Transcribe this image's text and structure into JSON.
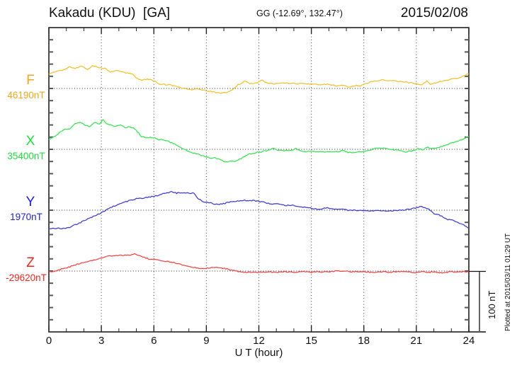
{
  "header": {
    "station_title": "Kakadu (KDU)  [GA]",
    "geo_coords": "GG (-12.69°, 132.47°)",
    "date": "2015/02/08"
  },
  "axes": {
    "x_title": "U T (hour)"
  },
  "scale_bar": {
    "label": "100 nT"
  },
  "footer_note": "Plotted at 2015/03/11 01:29 UT",
  "chart_data": {
    "type": "line",
    "title": "Kakadu (KDU)  [GA]",
    "station": "Kakadu (KDU) [GA]",
    "geographic_coordinates": "GG (-12.69°, 132.47°)",
    "date": "2015/02/08",
    "xlabel": "U T (hour)",
    "x_range": [
      0,
      24
    ],
    "x_major_ticks": [
      0,
      3,
      6,
      9,
      12,
      15,
      18,
      21,
      24
    ],
    "x_minor_tick_step_hours": 1,
    "y_tick_step_nT": 20,
    "row_spacing_nT": 100,
    "noise_nT": 0.9,
    "grid": "dotted vertical lines every 3 h; dotted horizontal line at each channel baseline",
    "legend_position": "left margin channel labels",
    "scale_bar_nT": 100,
    "y_axis_note": "no numeric y ticks; each trace plotted as offset from its baseline value, 100 nT per channel row",
    "series": [
      {
        "name": "F",
        "baseline_label": "46190nT",
        "baseline_nT": 46190,
        "label_color": "#efa61e",
        "line_color": "#f2c02e",
        "points_h_dnT": [
          [
            0,
            24
          ],
          [
            0.4,
            28
          ],
          [
            0.8,
            31
          ],
          [
            1.2,
            35
          ],
          [
            1.5,
            33
          ],
          [
            1.9,
            37
          ],
          [
            2.2,
            31
          ],
          [
            2.5,
            37
          ],
          [
            2.8,
            35
          ],
          [
            3.2,
            33
          ],
          [
            3.5,
            27
          ],
          [
            3.9,
            30
          ],
          [
            4.4,
            26
          ],
          [
            4.8,
            24
          ],
          [
            5.0,
            17
          ],
          [
            5.3,
            14
          ],
          [
            5.7,
            15
          ],
          [
            6.1,
            12
          ],
          [
            6.3,
            7
          ],
          [
            6.9,
            6
          ],
          [
            7.3,
            3
          ],
          [
            7.7,
            0
          ],
          [
            8.1,
            -2
          ],
          [
            8.6,
            -1
          ],
          [
            9.0,
            -4
          ],
          [
            9.5,
            -6
          ],
          [
            9.8,
            -8
          ],
          [
            10.2,
            -6
          ],
          [
            10.5,
            -2
          ],
          [
            10.8,
            6
          ],
          [
            11.2,
            12
          ],
          [
            11.5,
            8
          ],
          [
            11.9,
            9
          ],
          [
            12.2,
            14
          ],
          [
            12.5,
            8
          ],
          [
            13,
            8
          ],
          [
            13.5,
            9
          ],
          [
            14,
            8
          ],
          [
            14.5,
            8
          ],
          [
            15,
            7
          ],
          [
            15.5,
            6
          ],
          [
            16,
            7
          ],
          [
            16.4,
            4
          ],
          [
            16.8,
            6
          ],
          [
            17.2,
            2
          ],
          [
            17.5,
            5
          ],
          [
            17.8,
            4
          ],
          [
            18.2,
            9
          ],
          [
            18.6,
            12
          ],
          [
            19,
            14
          ],
          [
            19.5,
            13
          ],
          [
            20,
            12
          ],
          [
            20.5,
            10
          ],
          [
            21,
            8
          ],
          [
            21.3,
            5
          ],
          [
            21.6,
            12
          ],
          [
            21.8,
            7
          ],
          [
            22.2,
            10
          ],
          [
            22.6,
            13
          ],
          [
            23,
            15
          ],
          [
            23.4,
            17
          ],
          [
            23.7,
            21
          ],
          [
            24,
            24
          ]
        ]
      },
      {
        "name": "X",
        "baseline_label": "35400nT",
        "baseline_nT": 35400,
        "label_color": "#1fd83f",
        "line_color": "#37e153",
        "points_h_dnT": [
          [
            0,
            15
          ],
          [
            0.3,
            21
          ],
          [
            0.6,
            27
          ],
          [
            1.0,
            34
          ],
          [
            1.2,
            33
          ],
          [
            1.5,
            42
          ],
          [
            1.8,
            44
          ],
          [
            2.1,
            40
          ],
          [
            2.3,
            37
          ],
          [
            2.6,
            44
          ],
          [
            2.9,
            42
          ],
          [
            3.1,
            48
          ],
          [
            3.3,
            42
          ],
          [
            3.6,
            40
          ],
          [
            3.8,
            38
          ],
          [
            4.1,
            40
          ],
          [
            4.4,
            36
          ],
          [
            4.7,
            37
          ],
          [
            4.9,
            34
          ],
          [
            5.3,
            21
          ],
          [
            5.6,
            19
          ],
          [
            5.8,
            20
          ],
          [
            6.0,
            19
          ],
          [
            6.2,
            16
          ],
          [
            6.5,
            16
          ],
          [
            6.8,
            13
          ],
          [
            7.1,
            10
          ],
          [
            7.3,
            7
          ],
          [
            7.6,
            1
          ],
          [
            7.9,
            -2
          ],
          [
            8.1,
            -5
          ],
          [
            8.4,
            -7
          ],
          [
            8.7,
            -10
          ],
          [
            9.0,
            -13
          ],
          [
            9.2,
            -14
          ],
          [
            9.5,
            -14
          ],
          [
            9.8,
            -17
          ],
          [
            10.0,
            -20
          ],
          [
            10.3,
            -20
          ],
          [
            10.6,
            -20
          ],
          [
            10.9,
            -16
          ],
          [
            11.1,
            -13
          ],
          [
            11.4,
            -8
          ],
          [
            11.7,
            -7
          ],
          [
            11.9,
            -5
          ],
          [
            12.2,
            -4
          ],
          [
            12.5,
            -2
          ],
          [
            12.8,
            2
          ],
          [
            13.0,
            -1
          ],
          [
            13.3,
            -2
          ],
          [
            13.6,
            -2
          ],
          [
            13.9,
            -1
          ],
          [
            14.1,
            2
          ],
          [
            14.4,
            -2
          ],
          [
            14.7,
            -4
          ],
          [
            15.0,
            -4
          ],
          [
            15.5,
            -4
          ],
          [
            16.0,
            -4
          ],
          [
            16.5,
            -4
          ],
          [
            16.8,
            -2
          ],
          [
            17.1,
            -5
          ],
          [
            17.4,
            -6
          ],
          [
            17.7,
            -4
          ],
          [
            17.9,
            -5
          ],
          [
            18.2,
            -2
          ],
          [
            18.5,
            0
          ],
          [
            18.8,
            2
          ],
          [
            19.0,
            1
          ],
          [
            19.3,
            2
          ],
          [
            19.5,
            0
          ],
          [
            19.8,
            -1
          ],
          [
            20.1,
            -2
          ],
          [
            20.4,
            -5
          ],
          [
            20.6,
            -3
          ],
          [
            20.9,
            -2
          ],
          [
            21.1,
            1
          ],
          [
            21.4,
            -1
          ],
          [
            21.6,
            4
          ],
          [
            21.9,
            1
          ],
          [
            22.2,
            2
          ],
          [
            22.4,
            4
          ],
          [
            22.7,
            7
          ],
          [
            23.0,
            10
          ],
          [
            23.3,
            13
          ],
          [
            23.6,
            16
          ],
          [
            23.8,
            19
          ],
          [
            24,
            21
          ]
        ]
      },
      {
        "name": "Y",
        "baseline_label": "1970nT",
        "baseline_nT": 1970,
        "label_color": "#2121cd",
        "line_color": "#3a3ad0",
        "points_h_dnT": [
          [
            0,
            -30
          ],
          [
            0.5,
            -30
          ],
          [
            0.9,
            -30
          ],
          [
            1.1,
            -29
          ],
          [
            1.5,
            -24
          ],
          [
            1.9,
            -19
          ],
          [
            2.3,
            -13
          ],
          [
            2.8,
            -7
          ],
          [
            3.2,
            -1
          ],
          [
            3.6,
            5
          ],
          [
            4.0,
            10
          ],
          [
            4.4,
            14
          ],
          [
            4.8,
            17
          ],
          [
            5.0,
            19
          ],
          [
            5.4,
            20
          ],
          [
            5.8,
            22
          ],
          [
            6.2,
            24
          ],
          [
            6.6,
            28
          ],
          [
            7.0,
            30
          ],
          [
            7.3,
            28
          ],
          [
            7.5,
            29
          ],
          [
            7.9,
            28
          ],
          [
            8.3,
            28
          ],
          [
            8.5,
            20
          ],
          [
            8.8,
            14
          ],
          [
            9.1,
            13
          ],
          [
            9.5,
            10
          ],
          [
            9.9,
            10
          ],
          [
            10.3,
            13
          ],
          [
            10.7,
            15
          ],
          [
            11.1,
            16
          ],
          [
            11.5,
            16
          ],
          [
            11.9,
            15
          ],
          [
            12.3,
            13
          ],
          [
            12.7,
            10
          ],
          [
            13.1,
            10
          ],
          [
            13.5,
            8
          ],
          [
            13.9,
            8
          ],
          [
            14.3,
            6
          ],
          [
            14.7,
            5
          ],
          [
            15.1,
            2
          ],
          [
            15.5,
            2
          ],
          [
            15.9,
            4
          ],
          [
            16.3,
            1
          ],
          [
            16.7,
            2
          ],
          [
            17.1,
            0
          ],
          [
            17.5,
            0
          ],
          [
            17.9,
            -1
          ],
          [
            18.3,
            -1
          ],
          [
            18.7,
            -1
          ],
          [
            19.1,
            -1
          ],
          [
            19.5,
            -1
          ],
          [
            19.9,
            0
          ],
          [
            20.3,
            0
          ],
          [
            20.7,
            2
          ],
          [
            21.1,
            5
          ],
          [
            21.3,
            6
          ],
          [
            21.5,
            4
          ],
          [
            21.8,
            0
          ],
          [
            22.0,
            -6
          ],
          [
            22.3,
            -8
          ],
          [
            22.6,
            -12
          ],
          [
            22.8,
            -15
          ],
          [
            23.1,
            -17
          ],
          [
            23.4,
            -21
          ],
          [
            23.7,
            -24
          ],
          [
            24,
            -29
          ]
        ]
      },
      {
        "name": "Z",
        "baseline_label": "-29620nT",
        "baseline_nT": -29620,
        "label_color": "#e52521",
        "line_color": "#ef4242",
        "points_h_dnT": [
          [
            0,
            -1
          ],
          [
            0.4,
            0
          ],
          [
            0.8,
            4
          ],
          [
            1.2,
            7
          ],
          [
            1.7,
            12
          ],
          [
            2.1,
            15
          ],
          [
            2.5,
            17
          ],
          [
            2.9,
            21
          ],
          [
            3.3,
            24
          ],
          [
            3.7,
            25
          ],
          [
            4.1,
            26
          ],
          [
            4.5,
            26
          ],
          [
            4.9,
            28
          ],
          [
            5.3,
            24
          ],
          [
            5.7,
            20
          ],
          [
            6.1,
            19
          ],
          [
            6.5,
            17
          ],
          [
            6.9,
            15
          ],
          [
            7.3,
            13
          ],
          [
            7.7,
            9
          ],
          [
            8.1,
            6
          ],
          [
            8.5,
            5
          ],
          [
            8.9,
            4
          ],
          [
            9.3,
            6
          ],
          [
            9.7,
            6
          ],
          [
            10.1,
            4
          ],
          [
            10.5,
            1
          ],
          [
            10.9,
            -1
          ],
          [
            11.3,
            -2
          ],
          [
            11.7,
            -2
          ],
          [
            12.1,
            -2
          ],
          [
            12.5,
            -1
          ],
          [
            13.0,
            -2
          ],
          [
            13.5,
            -1
          ],
          [
            14.0,
            -2
          ],
          [
            14.5,
            -1
          ],
          [
            15.0,
            -2
          ],
          [
            15.5,
            -1
          ],
          [
            16.0,
            -2
          ],
          [
            16.3,
            0
          ],
          [
            16.8,
            0
          ],
          [
            17.3,
            -1
          ],
          [
            18.0,
            -1
          ],
          [
            18.5,
            -2
          ],
          [
            19.0,
            -1
          ],
          [
            19.5,
            -2
          ],
          [
            20.0,
            -1
          ],
          [
            20.3,
            0
          ],
          [
            20.7,
            -2
          ],
          [
            21.0,
            -3
          ],
          [
            21.3,
            -1
          ],
          [
            21.7,
            -2
          ],
          [
            22.0,
            -1
          ],
          [
            22.4,
            -3
          ],
          [
            22.7,
            -2
          ],
          [
            23.0,
            -1
          ],
          [
            23.3,
            -2
          ],
          [
            23.6,
            -1
          ],
          [
            24,
            -1
          ]
        ]
      }
    ]
  }
}
